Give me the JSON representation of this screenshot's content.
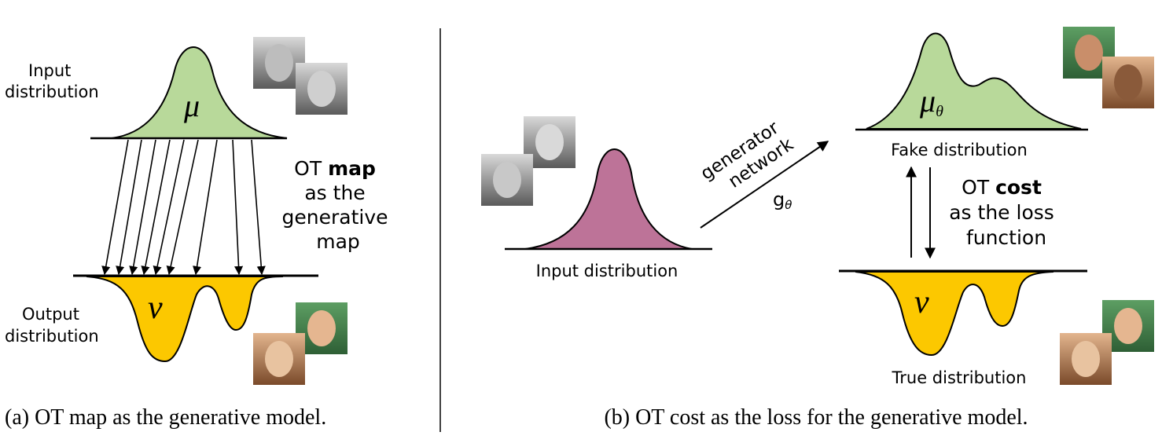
{
  "panel_a": {
    "input_label_line1": "Input",
    "input_label_line2": "distribution",
    "output_label_line1": "Output",
    "output_label_line2": "distribution",
    "mu_symbol": "μ",
    "nu_symbol": "ν",
    "ot_line1_prefix": "OT ",
    "ot_line1_bold": "map",
    "ot_line2": "as the",
    "ot_line3": "generative",
    "ot_line4": "map",
    "caption": "(a) OT map as the generative model."
  },
  "panel_b": {
    "input_label": "Input distribution",
    "generator_line1": "generator",
    "generator_line2": "network",
    "g_symbol": "g",
    "g_sub": "θ",
    "fake_label": "Fake distribution",
    "true_label": "True distribution",
    "mu_symbol": "μ",
    "mu_sub": "θ",
    "nu_symbol": "ν",
    "ot_line1_prefix": "OT ",
    "ot_line1_bold": "cost",
    "ot_line2": "as the loss",
    "ot_line3": "function",
    "caption": "(b) OT cost as the loss for the generative model."
  },
  "colors": {
    "green": "#b8d99a",
    "yellow": "#fcc800",
    "pink": "#bd7398"
  },
  "icons": {
    "faces": [
      "face-photo-icon"
    ]
  }
}
